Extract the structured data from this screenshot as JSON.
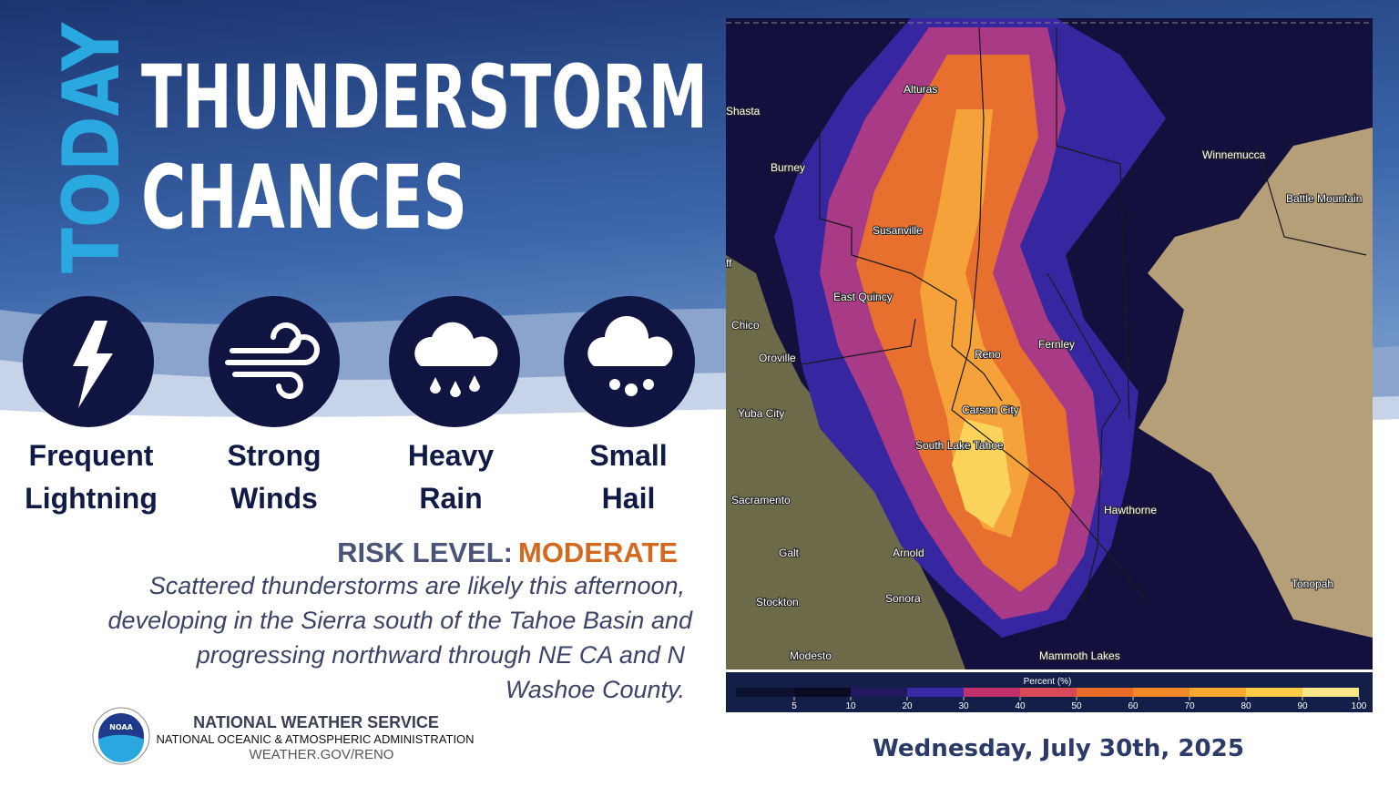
{
  "header": {
    "kicker": "TODAY",
    "title_lines": [
      "THUNDERSTORM",
      "CHANCES"
    ]
  },
  "hazards": [
    {
      "lines": [
        "Frequent",
        "Lightning"
      ]
    },
    {
      "lines": [
        "Strong",
        "Winds"
      ]
    },
    {
      "lines": [
        "Heavy",
        "Rain"
      ]
    },
    {
      "lines": [
        "Small",
        "Hail"
      ]
    }
  ],
  "risk": {
    "label": "RISK LEVEL:",
    "level": "MODERATE"
  },
  "description": {
    "lines": [
      "Scattered thunderstorms are likely this afternoon,",
      "developing in the Sierra south of the Tahoe Basin and",
      "progressing northward through NE CA and N",
      "Washoe County."
    ]
  },
  "footer": {
    "agency": "NATIONAL WEATHER SERVICE",
    "parent": "NATIONAL OCEANIC & ATMOSPHERIC ADMINISTRATION",
    "url": "WEATHER.GOV/RENO",
    "logo_text": "NOAA"
  },
  "map": {
    "cities": [
      "Alturas",
      "Shasta",
      "Burney",
      "Winnemucca",
      "Battle Mountain",
      "Susanville",
      "East Quincy",
      "ff",
      "Chico",
      "Oroville",
      "Reno",
      "Fernley",
      "Yuba City",
      "Carson City",
      "South Lake Tahoe",
      "Sacramento",
      "Hawthorne",
      "Galt",
      "Arnold",
      "Tonopah",
      "Stockton",
      "Sonora",
      "Modesto",
      "Mammoth Lakes"
    ],
    "colorbar": {
      "title": "Percent (%)",
      "ticks": [
        5,
        10,
        20,
        30,
        40,
        50,
        60,
        70,
        80,
        90,
        100
      ]
    }
  },
  "date": "Wednesday, July 30th, 2025"
}
